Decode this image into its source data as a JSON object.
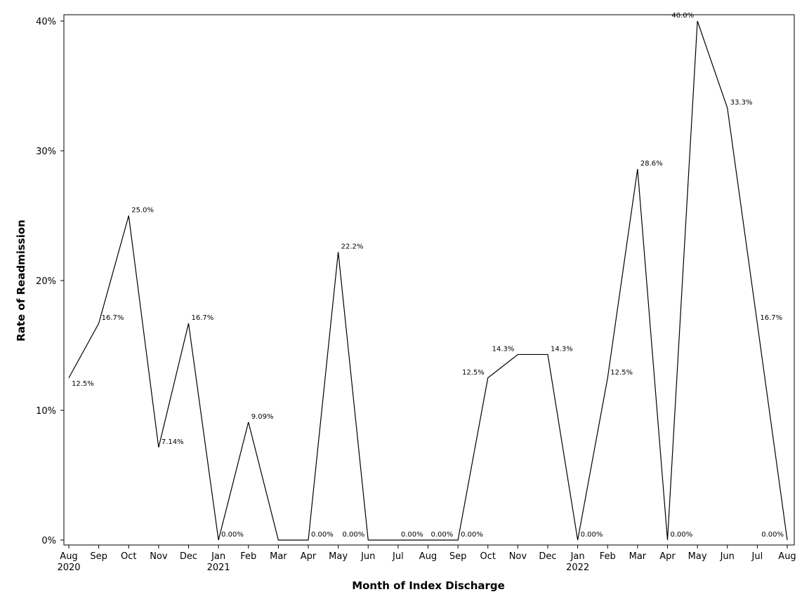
{
  "chart_data": {
    "type": "line",
    "xlabel": "Month of Index Discharge",
    "ylabel": "Rate of Readmission",
    "ylim": [
      0,
      40
    ],
    "y_ticks": [
      "0%",
      "10%",
      "20%",
      "30%",
      "40%"
    ],
    "y_tick_values": [
      0,
      10,
      20,
      30,
      40
    ],
    "grid": false,
    "line_color": "#000000",
    "x": [
      "2020-08",
      "2020-09",
      "2020-10",
      "2020-11",
      "2020-12",
      "2021-01",
      "2021-02",
      "2021-03",
      "2021-04",
      "2021-05",
      "2021-06",
      "2021-07",
      "2021-08",
      "2021-09",
      "2021-10",
      "2021-11",
      "2021-12",
      "2022-01",
      "2022-02",
      "2022-03",
      "2022-04",
      "2022-05",
      "2022-06",
      "2022-07",
      "2022-08"
    ],
    "x_tick_labels": [
      "Aug",
      "Sep",
      "Oct",
      "Nov",
      "Dec",
      "Jan",
      "Feb",
      "Mar",
      "Apr",
      "May",
      "Jun",
      "Jul",
      "Aug",
      "Sep",
      "Oct",
      "Nov",
      "Dec",
      "Jan",
      "Feb",
      "Mar",
      "Apr",
      "May",
      "Jun",
      "Jul",
      "Aug"
    ],
    "year_labels": [
      {
        "month": "2020-08",
        "label": "2020"
      },
      {
        "month": "2021-01",
        "label": "2021"
      },
      {
        "month": "2022-01",
        "label": "2022"
      }
    ],
    "values": [
      12.5,
      16.7,
      25.0,
      7.14,
      16.7,
      0.0,
      9.09,
      0.0,
      0.0,
      22.2,
      0.0,
      0.0,
      0.0,
      0.0,
      12.5,
      14.3,
      14.3,
      0.0,
      12.5,
      28.6,
      0.0,
      40.0,
      33.3,
      16.7,
      0.0
    ],
    "data_labels": [
      "12.5%",
      "16.7%",
      "25.0%",
      "7.14%",
      "16.7%",
      "0.00%",
      "9.09%",
      "",
      "0.00%",
      "22.2%",
      "0.00%",
      "0.00%",
      "0.00%",
      "0.00%",
      "12.5%",
      "14.3%",
      "14.3%",
      "0.00%",
      "12.5%",
      "28.6%",
      "0.00%",
      "40.0%",
      "33.3%",
      "16.7%",
      "0.00%"
    ],
    "data_label_sides": [
      "below-right",
      "right",
      "right",
      "right",
      "right",
      "right",
      "right",
      "left",
      "right",
      "right",
      "left",
      "right",
      "right",
      "right",
      "left",
      "left",
      "right",
      "right",
      "right",
      "right",
      "right",
      "left",
      "right",
      "right",
      "left"
    ]
  }
}
